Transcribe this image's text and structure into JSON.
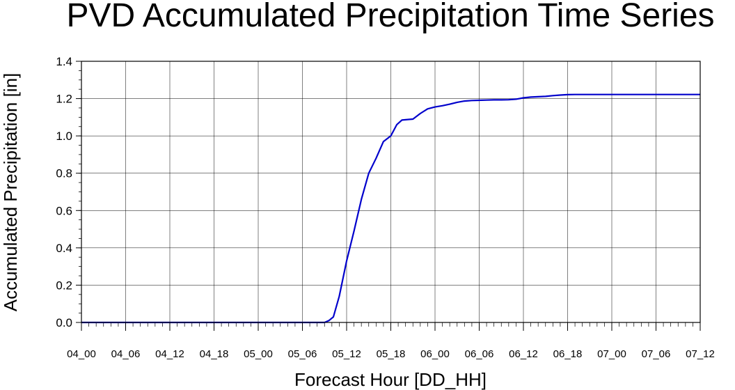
{
  "chart_data": {
    "type": "line",
    "title": "PVD Accumulated Precipitation Time Series",
    "xlabel": "Forecast Hour [DD_HH]",
    "ylabel": "Accumulated Precipitation [in]",
    "ylim": [
      0,
      1.4
    ],
    "yticks": [
      "0.0",
      "0.2",
      "0.4",
      "0.6",
      "0.8",
      "1.0",
      "1.2",
      "1.4"
    ],
    "xlim": [
      0,
      84
    ],
    "xtick_hours": [
      0,
      6,
      12,
      18,
      24,
      30,
      36,
      42,
      48,
      54,
      60,
      66,
      72,
      78,
      84
    ],
    "xticks": [
      "04_00",
      "04_06",
      "04_12",
      "04_18",
      "05_00",
      "05_06",
      "05_12",
      "05_18",
      "06_00",
      "06_06",
      "06_12",
      "06_18",
      "07_00",
      "07_06",
      "07_12"
    ],
    "grid": true,
    "line_color": "#0000cc",
    "series": [
      {
        "x": [
          0,
          3,
          6,
          9,
          12,
          15,
          18,
          21,
          24,
          27,
          30,
          33,
          33.6,
          34.2,
          35,
          36,
          37,
          38,
          39,
          40,
          41,
          42,
          42.8,
          43.5,
          44.3,
          45,
          46,
          47,
          48,
          49,
          50,
          51,
          52,
          53,
          54,
          55,
          56,
          57,
          58,
          59,
          60,
          61,
          62,
          63,
          64,
          65,
          66,
          67,
          68,
          69,
          70,
          72,
          75,
          78,
          81,
          84
        ],
        "y": [
          0,
          0,
          0,
          0,
          0,
          0,
          0,
          0,
          0,
          0,
          0,
          0,
          0.01,
          0.03,
          0.14,
          0.33,
          0.49,
          0.66,
          0.8,
          0.88,
          0.97,
          1.0,
          1.06,
          1.085,
          1.088,
          1.09,
          1.12,
          1.145,
          1.155,
          1.162,
          1.17,
          1.18,
          1.187,
          1.19,
          1.191,
          1.192,
          1.193,
          1.193,
          1.194,
          1.197,
          1.204,
          1.208,
          1.21,
          1.212,
          1.216,
          1.219,
          1.221,
          1.222,
          1.222,
          1.222,
          1.222,
          1.222,
          1.222,
          1.222,
          1.222,
          1.222
        ]
      }
    ]
  }
}
